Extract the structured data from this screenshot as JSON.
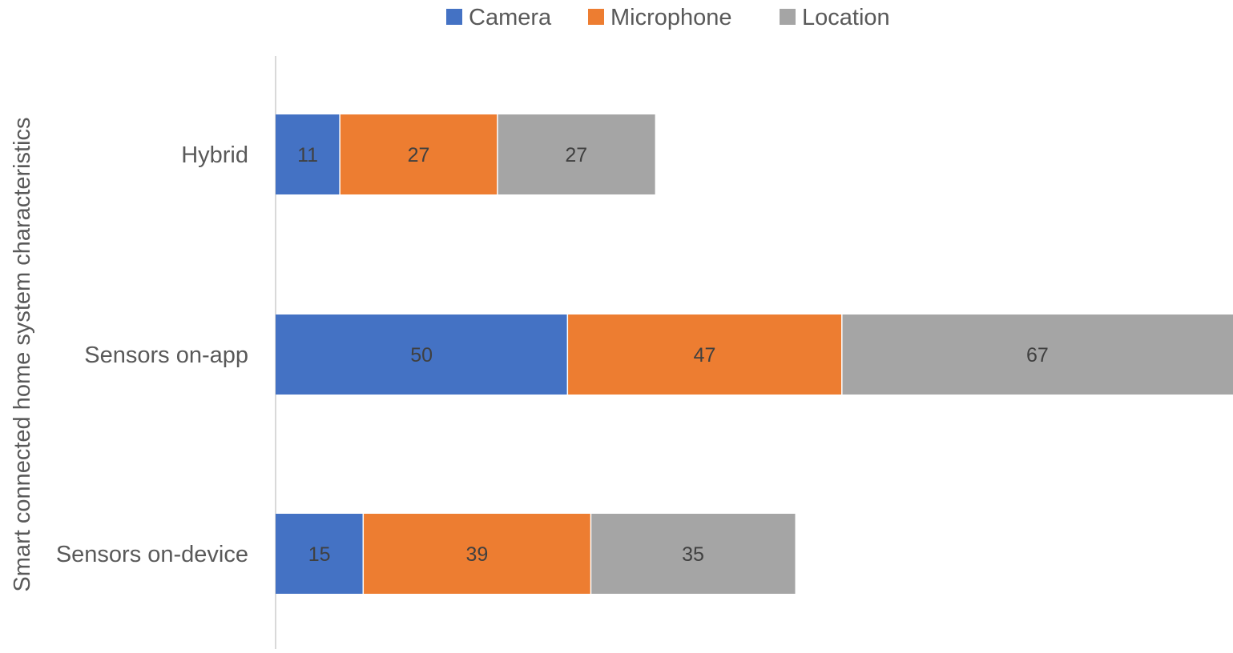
{
  "chart_data": {
    "type": "bar",
    "orientation": "horizontal",
    "stacked": true,
    "title": "",
    "xlabel": "",
    "ylabel": "Smart connected home system characteristics",
    "categories": [
      "Hybrid",
      "Sensors on-app",
      "Sensors on-device"
    ],
    "series": [
      {
        "name": "Camera",
        "color": "#4472C4",
        "values": [
          11,
          50,
          15
        ]
      },
      {
        "name": "Microphone",
        "color": "#ED7D31",
        "values": [
          27,
          47,
          39
        ]
      },
      {
        "name": "Location",
        "color": "#A5A5A5",
        "values": [
          27,
          67,
          35
        ]
      }
    ],
    "xlim": [
      0,
      164
    ],
    "grid": false,
    "legend": "top",
    "data_labels": true
  }
}
